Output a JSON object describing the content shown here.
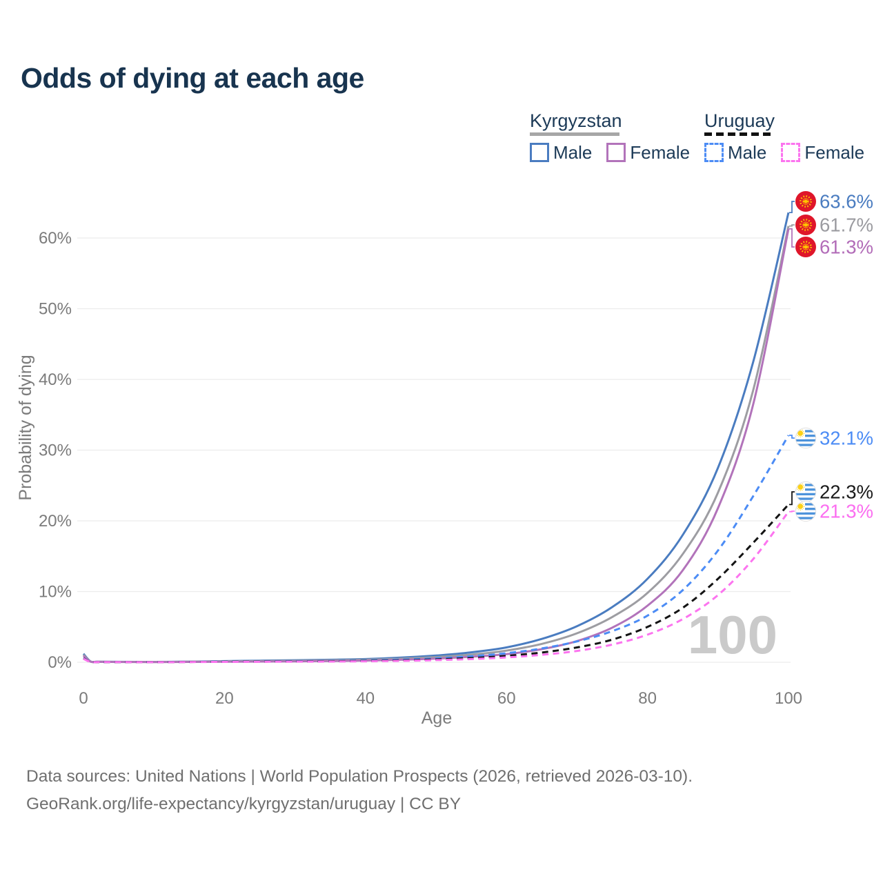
{
  "title": "Odds of dying at each age",
  "legend": {
    "groups": [
      {
        "label": "Kyrgyzstan",
        "line_style": "solid",
        "header_line_color": "#a6a6a6",
        "items": [
          {
            "label": "Male",
            "color": "#4a7cc0"
          },
          {
            "label": "Female",
            "color": "#b273ba"
          }
        ]
      },
      {
        "label": "Uruguay",
        "line_style": "dashed",
        "header_line_color": "#111111",
        "items": [
          {
            "label": "Male",
            "color": "#4c8cf5"
          },
          {
            "label": "Female",
            "color": "#fc74ef"
          }
        ]
      }
    ]
  },
  "chart_data": {
    "type": "line",
    "title": "Odds of dying at each age",
    "xlabel": "Age",
    "ylabel": "Probability of dying",
    "xlim": [
      0,
      100
    ],
    "ylim_percent": [
      0,
      66
    ],
    "grid": "horizontal",
    "legend_position": "top-right",
    "watermark": "100",
    "x_tick_values": [
      0,
      20,
      40,
      60,
      80,
      100
    ],
    "x_tick_labels": [
      "0",
      "20",
      "40",
      "60",
      "80",
      "100"
    ],
    "y_tick_values": [
      0,
      10,
      20,
      30,
      40,
      50,
      60
    ],
    "y_tick_labels": [
      "0%",
      "10%",
      "20%",
      "30%",
      "40%",
      "50%",
      "60%"
    ],
    "ages": [
      0,
      1,
      2,
      5,
      10,
      15,
      20,
      25,
      30,
      35,
      40,
      45,
      50,
      55,
      60,
      65,
      70,
      75,
      80,
      85,
      90,
      95,
      100
    ],
    "series": [
      {
        "name": "Kyrgyzstan Male",
        "color": "#4a7cc0",
        "dash": "solid",
        "flag": "kyrgyzstan",
        "end_label": "63.6%",
        "end_value": 63.6,
        "label_color": "#4a7cc0",
        "values": [
          1.2,
          0.12,
          0.08,
          0.06,
          0.05,
          0.09,
          0.16,
          0.22,
          0.28,
          0.35,
          0.45,
          0.65,
          0.95,
          1.4,
          2.1,
          3.3,
          5.1,
          7.8,
          11.8,
          18.0,
          27.5,
          42.5,
          63.6
        ]
      },
      {
        "name": "Kyrgyzstan Overall",
        "color": "#9d9da2",
        "dash": "solid",
        "flag": "kyrgyzstan",
        "end_label": "61.7%",
        "end_value": 61.7,
        "label_color": "#9b9ba0",
        "values": [
          1.05,
          0.1,
          0.07,
          0.05,
          0.04,
          0.07,
          0.12,
          0.16,
          0.2,
          0.26,
          0.35,
          0.5,
          0.73,
          1.08,
          1.65,
          2.6,
          4.1,
          6.4,
          9.8,
          15.3,
          24.0,
          38.5,
          61.7
        ]
      },
      {
        "name": "Kyrgyzstan Female",
        "color": "#b273ba",
        "dash": "solid",
        "flag": "kyrgyzstan",
        "end_label": "61.3%",
        "end_value": 61.3,
        "label_color": "#b26cb8",
        "values": [
          0.9,
          0.09,
          0.06,
          0.04,
          0.03,
          0.05,
          0.08,
          0.1,
          0.13,
          0.18,
          0.24,
          0.35,
          0.52,
          0.78,
          1.15,
          1.85,
          3.0,
          4.9,
          8.0,
          13.0,
          21.8,
          36.5,
          61.3
        ]
      },
      {
        "name": "Uruguay Male",
        "color": "#4c8cf5",
        "dash": "dashed",
        "flag": "uruguay",
        "end_label": "32.1%",
        "end_value": 32.1,
        "label_color": "#4c8cf5",
        "values": [
          0.6,
          0.05,
          0.03,
          0.02,
          0.02,
          0.05,
          0.09,
          0.11,
          0.14,
          0.18,
          0.26,
          0.38,
          0.56,
          0.85,
          1.28,
          1.95,
          2.95,
          4.4,
          6.6,
          10.2,
          15.8,
          23.5,
          32.1
        ]
      },
      {
        "name": "Uruguay Overall",
        "color": "#141414",
        "dash": "dashed",
        "flag": "uruguay",
        "end_label": "22.3%",
        "end_value": 22.3,
        "label_color": "#1a1a1a",
        "values": [
          0.55,
          0.04,
          0.03,
          0.02,
          0.02,
          0.04,
          0.07,
          0.09,
          0.11,
          0.14,
          0.19,
          0.27,
          0.4,
          0.6,
          0.9,
          1.38,
          2.1,
          3.2,
          5.0,
          7.7,
          11.8,
          16.9,
          22.3
        ]
      },
      {
        "name": "Uruguay Female",
        "color": "#fc74ef",
        "dash": "dashed",
        "flag": "uruguay",
        "end_label": "21.3%",
        "end_value": 21.3,
        "label_color": "#fb6ef0",
        "values": [
          0.5,
          0.04,
          0.02,
          0.02,
          0.01,
          0.03,
          0.05,
          0.06,
          0.08,
          0.1,
          0.14,
          0.2,
          0.3,
          0.45,
          0.68,
          1.05,
          1.6,
          2.5,
          3.9,
          6.1,
          9.5,
          14.6,
          21.3
        ]
      }
    ]
  },
  "footer": {
    "line1": "Data sources: United Nations | World Population Prospects (2026, retrieved 2026-03-10).",
    "line2": "GeoRank.org/life-expectancy/kyrgyzstan/uruguay | CC BY"
  }
}
